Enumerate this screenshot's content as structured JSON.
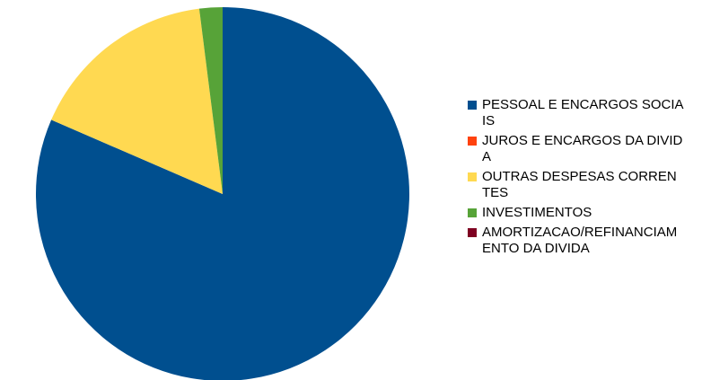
{
  "chart_data": {
    "type": "pie",
    "title": "",
    "categories": [
      "PESSOAL E ENCARGOS SOCIAIS",
      "JUROS E ENCARGOS DA DIVIDA",
      "OUTRAS DESPESAS CORRENTES",
      "INVESTIMENTOS",
      "AMORTIZACAO/REFINANCIAMENTO DA DIVIDA"
    ],
    "values": [
      81.5,
      0,
      16.5,
      2.0,
      0
    ],
    "colors": [
      "#004f8f",
      "#ff420e",
      "#ffd951",
      "#57a338",
      "#7e0021"
    ],
    "start_angle_deg": 0,
    "direction": "clockwise",
    "legend_position": "right"
  }
}
